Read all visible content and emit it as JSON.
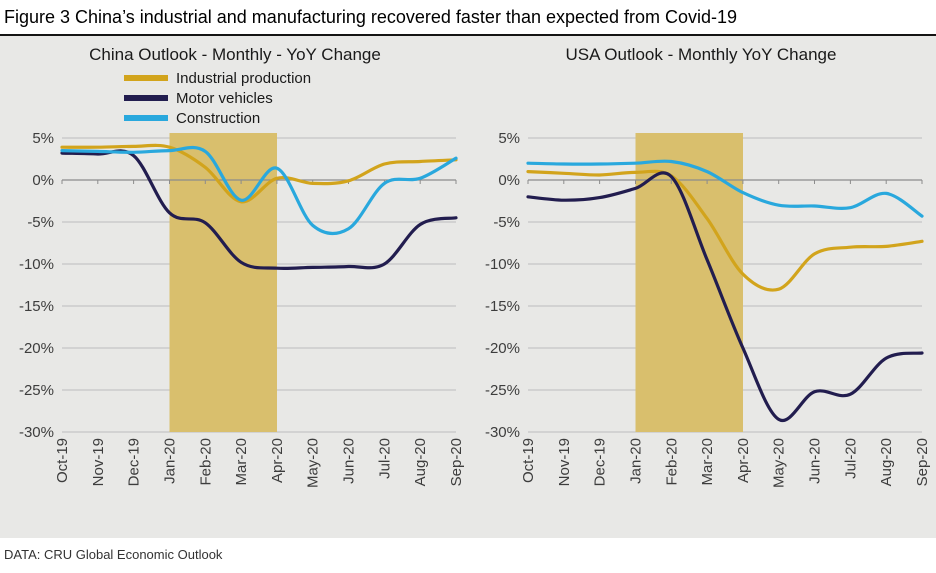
{
  "figure": {
    "title": "Figure 3 China’s industrial and manufacturing recovered faster than expected from Covid-19"
  },
  "footer": {
    "source": "DATA: CRU Global Economic Outlook"
  },
  "colors": {
    "background": "#e8e8e6",
    "gridline": "#bdbdbd",
    "zero_line": "#8c8c8c",
    "band": "#d9bf6d",
    "text": "#3d3d3d",
    "gold": "#d2a41c",
    "navy": "#221d4f",
    "cyan": "#29a8dd"
  },
  "chart_data": [
    {
      "id": "china-outlook",
      "type": "line",
      "title": "China Outlook - Monthly - YoY Change",
      "categories": [
        "Oct-19",
        "Nov-19",
        "Dec-19",
        "Jan-20",
        "Feb-20",
        "Mar-20",
        "Apr-20",
        "May-20",
        "Jun-20",
        "Jul-20",
        "Aug-20",
        "Sep-20"
      ],
      "ylim": [
        -30,
        5
      ],
      "yticks": [
        5,
        0,
        -5,
        -10,
        -15,
        -20,
        -25,
        -30
      ],
      "y_format": "percent",
      "grid": true,
      "legend_position": "top",
      "show_legend": true,
      "highlight_band": {
        "from": "Jan-20",
        "to": "Apr-20"
      },
      "series": [
        {
          "name": "Industrial production",
          "color": "#d2a41c",
          "values": [
            3.9,
            3.9,
            4.0,
            3.9,
            1.5,
            -2.6,
            0.2,
            -0.4,
            -0.1,
            1.9,
            2.2,
            2.4
          ]
        },
        {
          "name": "Motor vehicles",
          "color": "#221d4f",
          "values": [
            3.2,
            3.1,
            2.9,
            -3.9,
            -5.1,
            -9.8,
            -10.5,
            -10.4,
            -10.3,
            -10.0,
            -5.3,
            -4.5
          ]
        },
        {
          "name": "Construction",
          "color": "#29a8dd",
          "values": [
            3.5,
            3.4,
            3.3,
            3.5,
            3.4,
            -2.4,
            1.4,
            -5.4,
            -5.8,
            -0.4,
            0.2,
            2.6
          ]
        }
      ]
    },
    {
      "id": "usa-outlook",
      "type": "line",
      "title": "USA Outlook - Monthly YoY Change",
      "categories": [
        "Oct-19",
        "Nov-19",
        "Dec-19",
        "Jan-20",
        "Feb-20",
        "Mar-20",
        "Apr-20",
        "May-20",
        "Jun-20",
        "Jul-20",
        "Aug-20",
        "Sep-20"
      ],
      "ylim": [
        -30,
        5
      ],
      "yticks": [
        5,
        0,
        -5,
        -10,
        -15,
        -20,
        -25,
        -30
      ],
      "y_format": "percent",
      "grid": true,
      "show_legend": false,
      "highlight_band": {
        "from": "Jan-20",
        "to": "Apr-20"
      },
      "series": [
        {
          "name": "Industrial production",
          "color": "#d2a41c",
          "values": [
            1.0,
            0.8,
            0.6,
            0.9,
            0.5,
            -4.6,
            -11.2,
            -13.0,
            -8.8,
            -8.0,
            -7.9,
            -7.3
          ]
        },
        {
          "name": "Motor vehicles",
          "color": "#221d4f",
          "values": [
            -2.0,
            -2.4,
            -2.1,
            -1.0,
            0.4,
            -9.5,
            -20.0,
            -28.5,
            -25.2,
            -25.5,
            -21.2,
            -20.6
          ]
        },
        {
          "name": "Construction",
          "color": "#29a8dd",
          "values": [
            2.0,
            1.9,
            1.9,
            2.0,
            2.2,
            1.0,
            -1.5,
            -3.0,
            -3.1,
            -3.3,
            -1.6,
            -4.3
          ]
        }
      ]
    }
  ]
}
